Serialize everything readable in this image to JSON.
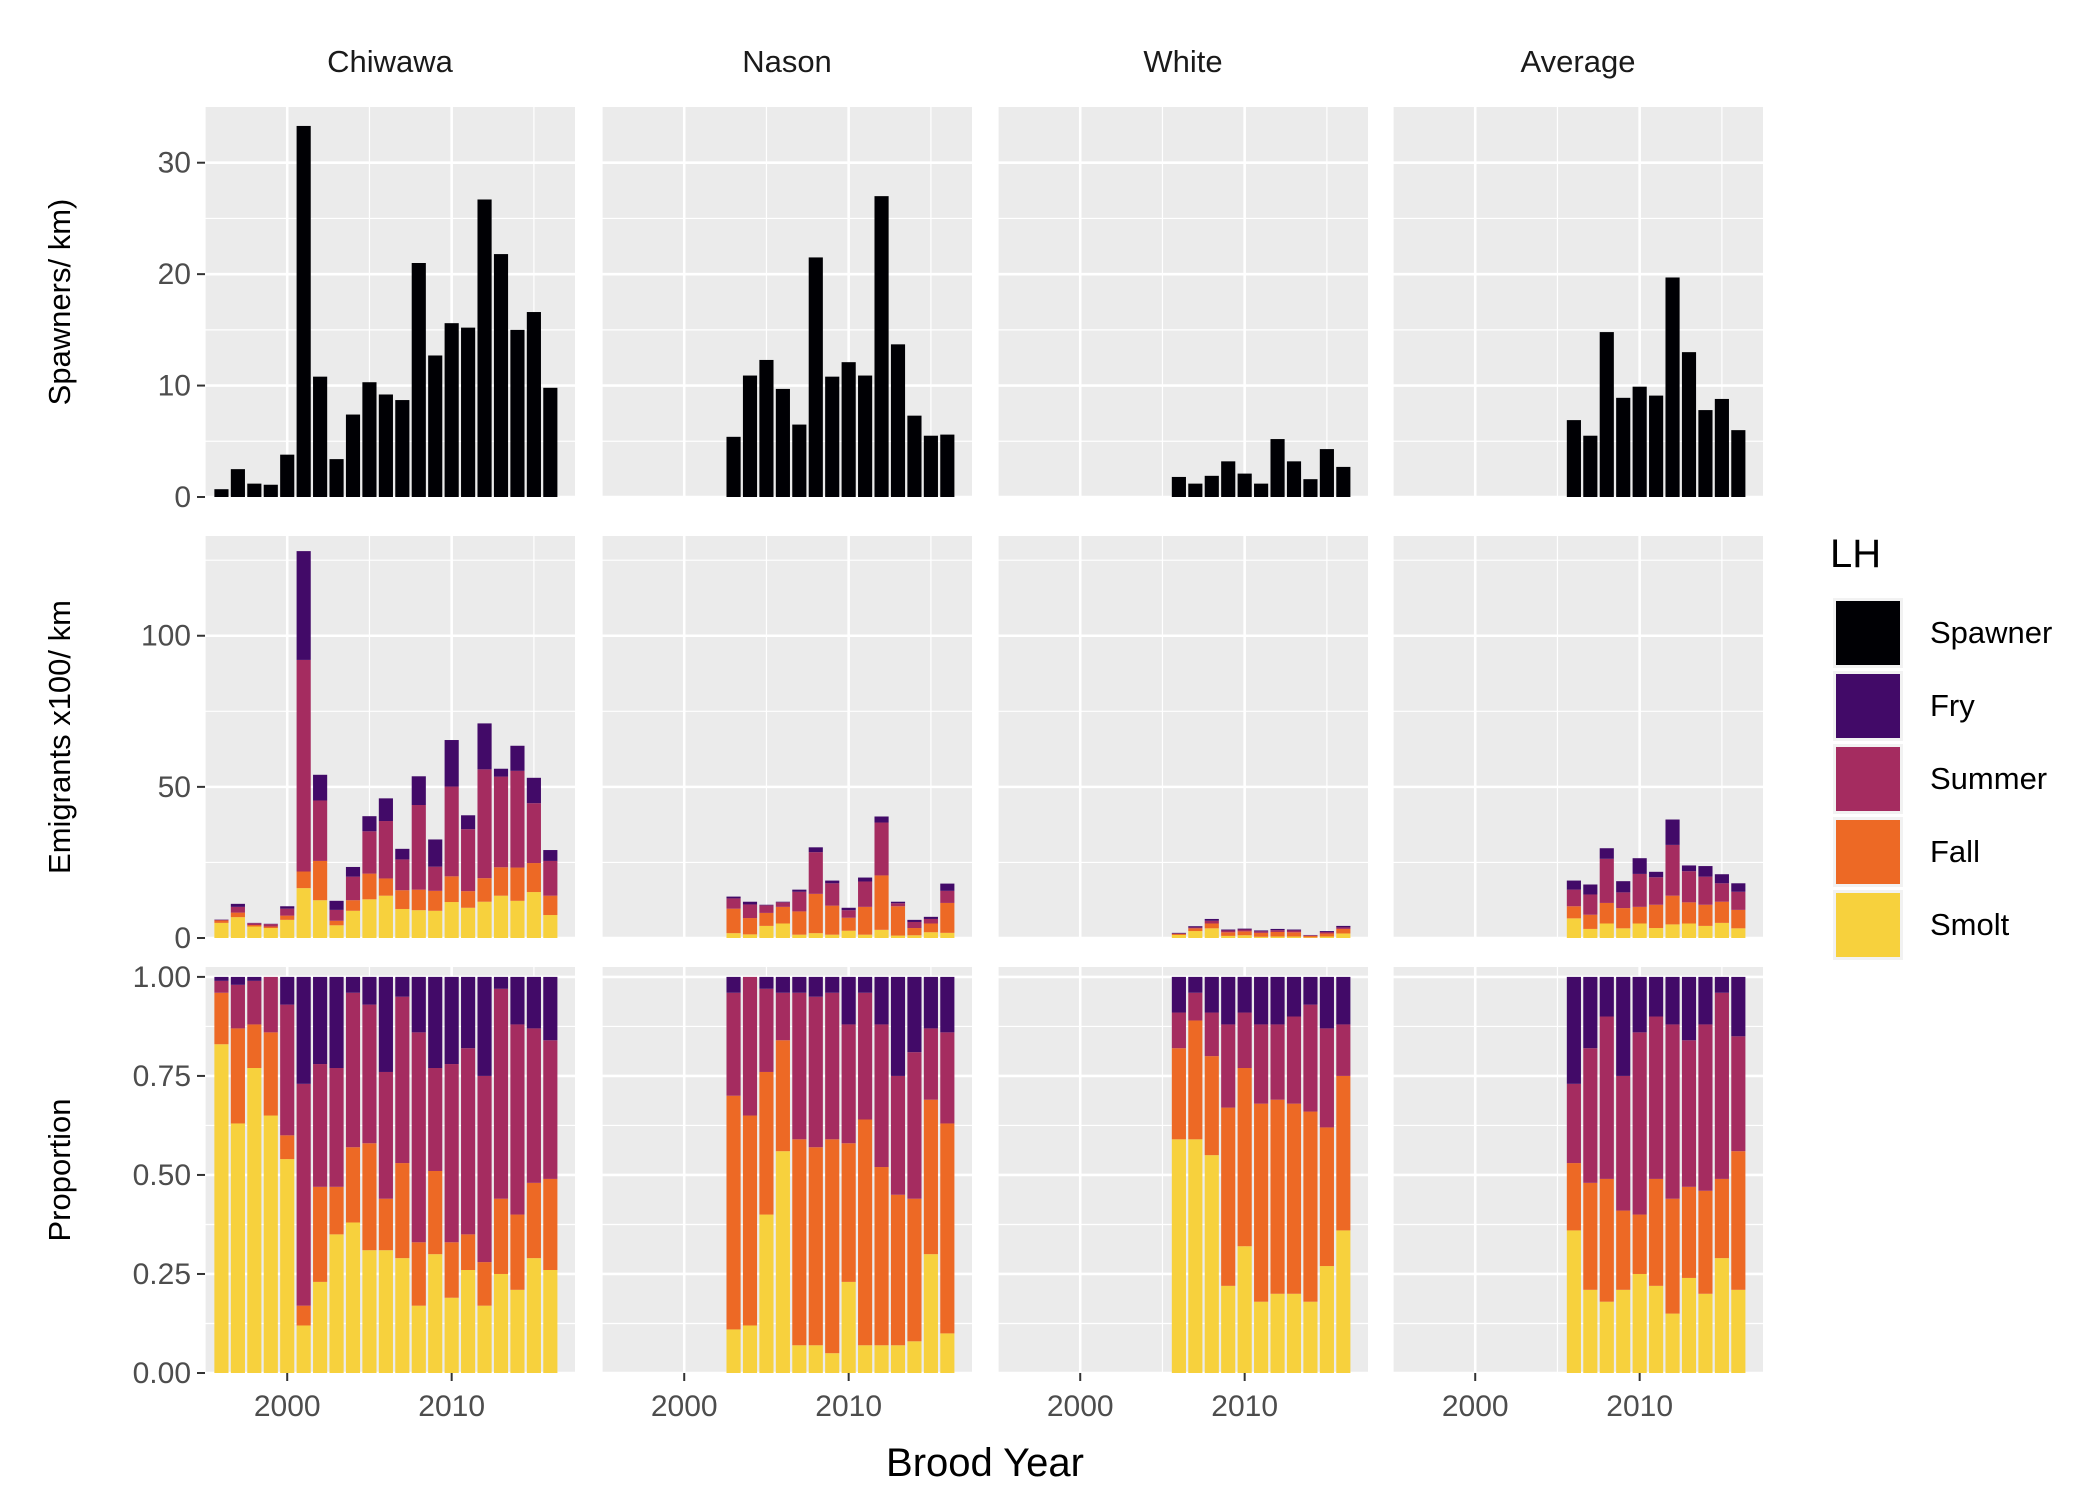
{
  "chart_data": {
    "type": "bar",
    "title": "",
    "xlabel": "Brood Year",
    "facets": {
      "columns": [
        "Chiwawa",
        "Nason",
        "White",
        "Average"
      ],
      "rows": [
        {
          "key": "spawners",
          "ylabel": "Spawners/ km)",
          "ylim": [
            0,
            35
          ],
          "yticks": [
            0,
            10,
            20,
            30
          ]
        },
        {
          "key": "emigrants",
          "ylabel": "Emigrants x100/ km",
          "ylim": [
            0,
            133
          ],
          "yticks": [
            0,
            50,
            100
          ]
        },
        {
          "key": "proportion",
          "ylabel": "Proportion",
          "ylim": [
            0,
            1.025
          ],
          "yticks": [
            "0.00",
            "0.25",
            "0.50",
            "0.75",
            "1.00"
          ]
        }
      ]
    },
    "x_range": [
      1995,
      2017.5
    ],
    "x_ticks": [
      2000,
      2010
    ],
    "legend": {
      "title": "LH",
      "position": "right",
      "entries": [
        {
          "name": "Spawner",
          "color": "#000004"
        },
        {
          "name": "Fry",
          "color": "#420a68"
        },
        {
          "name": "Summer",
          "color": "#a52c60"
        },
        {
          "name": "Fall",
          "color": "#ed6925"
        },
        {
          "name": "Smolt",
          "color": "#f7d13d"
        }
      ]
    },
    "stack_order": [
      "Smolt",
      "Fall",
      "Summer",
      "Fry"
    ],
    "panels": {
      "Chiwawa": {
        "years": [
          1996,
          1997,
          1998,
          1999,
          2000,
          2001,
          2002,
          2003,
          2004,
          2005,
          2006,
          2007,
          2008,
          2009,
          2010,
          2011,
          2012,
          2013,
          2014,
          2015,
          2016
        ],
        "spawners": [
          0.7,
          2.5,
          1.2,
          1.1,
          3.8,
          33.3,
          10.8,
          3.4,
          7.4,
          10.3,
          9.2,
          8.7,
          21.0,
          12.7,
          15.6,
          15.2,
          26.7,
          21.8,
          15.0,
          16.6,
          9.8
        ],
        "emigrants": {
          "Smolt": [
            5.0,
            6.9,
            3.8,
            3.3,
            6.0,
            16.5,
            12.5,
            4.2,
            9.0,
            12.8,
            14.0,
            9.6,
            9.2,
            9.0,
            11.9,
            10.0,
            12.0,
            14.0,
            12.3,
            15.2,
            7.6
          ],
          "Fall": [
            0.8,
            1.5,
            0.5,
            0.5,
            1.4,
            5.5,
            13.0,
            1.5,
            3.5,
            8.5,
            5.7,
            6.2,
            6.8,
            6.6,
            8.5,
            5.5,
            7.8,
            9.4,
            11.0,
            9.6,
            6.4
          ],
          "Summer": [
            0.2,
            1.9,
            0.6,
            0.8,
            2.3,
            70.0,
            20.0,
            3.6,
            7.8,
            14.0,
            19.0,
            10.2,
            28.0,
            8.0,
            29.7,
            20.5,
            36.0,
            30.0,
            32.0,
            19.8,
            11.5
          ],
          "Fry": [
            0.1,
            1.0,
            0.1,
            0.1,
            0.8,
            36.0,
            8.5,
            3.0,
            3.2,
            5.0,
            7.5,
            3.5,
            9.5,
            9.0,
            15.4,
            4.6,
            15.2,
            2.6,
            8.3,
            8.4,
            3.6
          ]
        },
        "proportion": {
          "Smolt": [
            0.83,
            0.63,
            0.77,
            0.65,
            0.54,
            0.12,
            0.23,
            0.35,
            0.38,
            0.31,
            0.31,
            0.29,
            0.17,
            0.3,
            0.19,
            0.26,
            0.17,
            0.25,
            0.21,
            0.29,
            0.26
          ],
          "Fall": [
            0.13,
            0.24,
            0.11,
            0.21,
            0.06,
            0.05,
            0.24,
            0.12,
            0.19,
            0.27,
            0.13,
            0.24,
            0.16,
            0.21,
            0.14,
            0.09,
            0.11,
            0.19,
            0.19,
            0.19,
            0.23
          ],
          "Summer": [
            0.03,
            0.11,
            0.11,
            0.14,
            0.33,
            0.56,
            0.31,
            0.3,
            0.39,
            0.35,
            0.32,
            0.42,
            0.53,
            0.26,
            0.45,
            0.47,
            0.47,
            0.53,
            0.48,
            0.39,
            0.35
          ],
          "Fry": [
            0.01,
            0.02,
            0.01,
            0.0,
            0.07,
            0.27,
            0.22,
            0.23,
            0.04,
            0.07,
            0.24,
            0.05,
            0.14,
            0.23,
            0.22,
            0.18,
            0.25,
            0.03,
            0.12,
            0.13,
            0.16
          ]
        }
      },
      "Nason": {
        "years": [
          2003,
          2004,
          2005,
          2006,
          2007,
          2008,
          2009,
          2010,
          2011,
          2012,
          2013,
          2014,
          2015,
          2016
        ],
        "spawners": [
          5.4,
          10.9,
          12.3,
          9.7,
          6.5,
          21.5,
          10.8,
          12.1,
          10.9,
          27.0,
          13.7,
          7.3,
          5.5,
          5.6
        ],
        "emigrants": {
          "Smolt": [
            1.6,
            1.2,
            4.0,
            4.8,
            1.1,
            1.6,
            1.1,
            2.4,
            1.1,
            2.7,
            0.8,
            0.9,
            1.9,
            1.7
          ],
          "Fall": [
            8.1,
            5.4,
            4.3,
            5.5,
            7.7,
            13.0,
            9.6,
            4.3,
            9.2,
            18.0,
            9.7,
            2.4,
            2.9,
            9.9
          ],
          "Summer": [
            3.4,
            4.5,
            2.5,
            1.5,
            6.5,
            13.8,
            7.4,
            2.5,
            8.4,
            17.5,
            1.0,
            2.0,
            1.5,
            4.0
          ],
          "Fry": [
            0.6,
            0.9,
            0.2,
            0.2,
            0.7,
            1.6,
            0.9,
            0.8,
            1.3,
            2.0,
            0.5,
            0.7,
            0.7,
            2.4
          ]
        },
        "proportion": {
          "Smolt": [
            0.11,
            0.12,
            0.4,
            0.56,
            0.07,
            0.07,
            0.05,
            0.23,
            0.07,
            0.07,
            0.07,
            0.08,
            0.3,
            0.1
          ],
          "Fall": [
            0.59,
            0.53,
            0.36,
            0.28,
            0.52,
            0.5,
            0.54,
            0.35,
            0.57,
            0.45,
            0.38,
            0.36,
            0.39,
            0.53
          ],
          "Summer": [
            0.26,
            0.35,
            0.21,
            0.12,
            0.37,
            0.38,
            0.37,
            0.3,
            0.32,
            0.36,
            0.3,
            0.37,
            0.18,
            0.23
          ],
          "Fry": [
            0.04,
            0.0,
            0.03,
            0.04,
            0.04,
            0.05,
            0.04,
            0.12,
            0.04,
            0.12,
            0.25,
            0.19,
            0.13,
            0.14
          ]
        }
      },
      "White": {
        "years": [
          2006,
          2007,
          2008,
          2009,
          2010,
          2011,
          2012,
          2013,
          2014,
          2015,
          2016
        ],
        "spawners": [
          1.8,
          1.2,
          1.9,
          3.2,
          2.1,
          1.2,
          5.2,
          3.2,
          1.6,
          4.3,
          2.7
        ],
        "emigrants": {
          "Smolt": [
            1.0,
            2.3,
            3.2,
            0.7,
            0.9,
            0.4,
            0.5,
            0.5,
            0.2,
            0.5,
            1.5
          ],
          "Fall": [
            0.4,
            0.9,
            1.6,
            1.2,
            1.3,
            1.3,
            1.5,
            1.4,
            0.5,
            1.0,
            1.5
          ],
          "Summer": [
            0.1,
            0.3,
            0.9,
            0.6,
            0.6,
            0.5,
            0.6,
            0.6,
            0.2,
            0.5,
            0.5
          ],
          "Fry": [
            0.2,
            0.4,
            0.6,
            0.3,
            0.3,
            0.3,
            0.4,
            0.3,
            0.1,
            0.3,
            0.5
          ]
        },
        "proportion": {
          "Smolt": [
            0.59,
            0.59,
            0.55,
            0.22,
            0.32,
            0.18,
            0.2,
            0.2,
            0.18,
            0.27,
            0.36
          ],
          "Fall": [
            0.23,
            0.3,
            0.25,
            0.45,
            0.45,
            0.5,
            0.49,
            0.48,
            0.48,
            0.35,
            0.39
          ],
          "Summer": [
            0.09,
            0.07,
            0.11,
            0.21,
            0.14,
            0.2,
            0.19,
            0.22,
            0.27,
            0.25,
            0.13
          ],
          "Fry": [
            0.09,
            0.04,
            0.09,
            0.12,
            0.09,
            0.12,
            0.12,
            0.1,
            0.07,
            0.13,
            0.12
          ]
        }
      },
      "Average": {
        "years": [
          2006,
          2007,
          2008,
          2009,
          2010,
          2011,
          2012,
          2013,
          2014,
          2015,
          2016
        ],
        "spawners": [
          6.9,
          5.5,
          14.8,
          8.9,
          9.9,
          9.1,
          19.7,
          13.0,
          7.8,
          8.8,
          6.0
        ],
        "emigrants": {
          "Smolt": [
            6.5,
            3.0,
            4.8,
            3.2,
            4.8,
            3.3,
            4.5,
            4.8,
            4.0,
            5.0,
            3.2
          ],
          "Fall": [
            4.0,
            4.7,
            6.8,
            6.7,
            5.5,
            7.7,
            9.5,
            7.0,
            7.0,
            7.0,
            6.1
          ],
          "Summer": [
            5.5,
            6.7,
            14.6,
            5.2,
            10.9,
            9.1,
            16.8,
            10.3,
            9.3,
            6.1,
            6.0
          ],
          "Fry": [
            3.0,
            3.3,
            3.5,
            3.7,
            5.2,
            1.8,
            8.4,
            1.9,
            3.5,
            3.0,
            2.8
          ]
        },
        "proportion": {
          "Smolt": [
            0.36,
            0.21,
            0.18,
            0.21,
            0.25,
            0.22,
            0.15,
            0.24,
            0.2,
            0.29,
            0.21
          ],
          "Fall": [
            0.17,
            0.27,
            0.31,
            0.2,
            0.15,
            0.27,
            0.29,
            0.23,
            0.26,
            0.2,
            0.35
          ],
          "Summer": [
            0.2,
            0.34,
            0.41,
            0.34,
            0.46,
            0.41,
            0.44,
            0.37,
            0.42,
            0.47,
            0.29
          ],
          "Fry": [
            0.27,
            0.18,
            0.1,
            0.25,
            0.14,
            0.1,
            0.12,
            0.16,
            0.12,
            0.04,
            0.15
          ]
        }
      }
    }
  }
}
